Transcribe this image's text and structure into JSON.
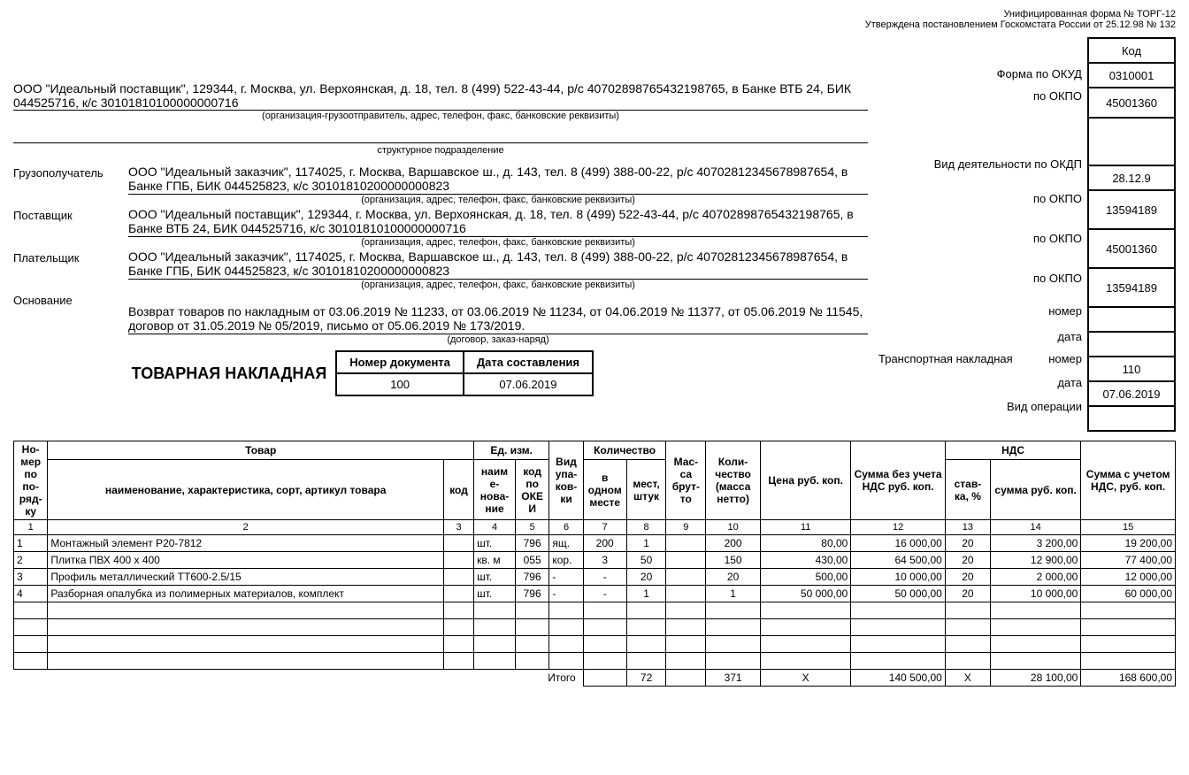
{
  "header": {
    "line1": "Унифицированная форма № ТОРГ-12",
    "line2": "Утверждена постановлением Госкомстата России от 25.12.98 № 132"
  },
  "codes": {
    "header": "Код",
    "okud_label": "Форма по ОКУД",
    "okud": "0310001",
    "okpo_label": "по ОКПО",
    "okpo_sender": "45001360",
    "okdp_label": "Вид деятельности по ОКДП",
    "okdp_date": "28.12.9",
    "okpo_consignee": "13594189",
    "okpo_supplier": "45001360",
    "okpo_payer": "13594189",
    "number_label": "номер",
    "date_label": "дата",
    "transport_number": "110",
    "transport_date": "07.06.2019",
    "transport_label": "Транспортная накладная",
    "operation_label": "Вид операции"
  },
  "sender": {
    "text": "ООО \"Идеальный поставщик\", 129344, г. Москва, ул. Верхоянская, д. 18, тел. 8 (499) 522-43-44, р/с 40702898765432198765, в Банке ВТБ 24, БИК 044525716, к/с 30101810100000000716",
    "caption": "(организация-грузоотправитель, адрес, телефон, факс, банковские реквизиты)"
  },
  "subdivision_caption": "структурное подразделение",
  "parties": {
    "consignee_label": "Грузополучатель",
    "consignee": "ООО \"Идеальный заказчик\", 1174025, г. Москва, Варшавское ш., д. 143, тел. 8 (499) 388-00-22, р/с 40702812345678987654, в Банке ГПБ, БИК 044525823, к/с 30101810200000000823",
    "supplier_label": "Поставщик",
    "supplier": "ООО \"Идеальный поставщик\", 129344, г. Москва, ул. Верхоянская, д. 18, тел. 8 (499) 522-43-44, р/с 40702898765432198765, в Банке ВТБ 24, БИК 044525716, к/с 30101810100000000716",
    "payer_label": "Плательщик",
    "payer": "ООО \"Идеальный заказчик\", 1174025, г. Москва, Варшавское ш., д. 143, тел. 8 (499) 388-00-22, р/с 40702812345678987654, в Банке ГПБ, БИК 044525823, к/с 30101810200000000823",
    "party_caption": "(организация, адрес, телефон, факс, банковские реквизиты)",
    "basis_label": "Основание",
    "basis": "Возврат товаров по накладным от 03.06.2019 № 11233, от 03.06.2019 № 11234, от 04.06.2019 № 11377, от 05.06.2019 № 11545, договор от 31.05.2019 № 05/2019, письмо от 05.06.2019 № 173/2019.",
    "basis_caption": "(договор, заказ-наряд)"
  },
  "doc": {
    "title": "ТОВАРНАЯ НАКЛАДНАЯ",
    "number_header": "Номер документа",
    "date_header": "Дата составления",
    "number": "100",
    "date": "07.06.2019"
  },
  "table": {
    "headers": {
      "num": "Но-мер по по-ряд-ку",
      "goods": "Товар",
      "goods_name": "наименование, характеристика, сорт, артикул товара",
      "goods_code": "код",
      "unit": "Ед. изм.",
      "unit_name": "наим е-нова-ние",
      "unit_code": "код по ОКЕ И",
      "pack": "Вид упа-ков-ки",
      "qty": "Количество",
      "qty_place": "в одном месте",
      "qty_places": "мест, штук",
      "mass": "Мас-са брут-то",
      "net": "Коли-чество (масса нетто)",
      "price": "Цена руб. коп.",
      "sum_no_vat": "Сумма без учета НДС руб. коп.",
      "vat": "НДС",
      "vat_rate": "став-ка, %",
      "vat_sum": "сумма руб. коп.",
      "sum_vat": "Сумма с учетом НДС, руб. коп."
    },
    "colnums": [
      "1",
      "2",
      "3",
      "4",
      "5",
      "6",
      "7",
      "8",
      "9",
      "10",
      "11",
      "12",
      "13",
      "14",
      "15"
    ],
    "rows": [
      {
        "n": "1",
        "name": "Монтажный элемент Р20-7812",
        "code": "",
        "un": "шт.",
        "unc": "796",
        "pack": "ящ.",
        "qp": "200",
        "qm": "1",
        "mass": "",
        "net": "200",
        "price": "80,00",
        "sum": "16 000,00",
        "vr": "20",
        "vs": "3 200,00",
        "total": "19 200,00"
      },
      {
        "n": "2",
        "name": "Плитка ПВХ 400 х 400",
        "code": "",
        "un": "кв. м",
        "unc": "055",
        "pack": "кор.",
        "qp": "3",
        "qm": "50",
        "mass": "",
        "net": "150",
        "price": "430,00",
        "sum": "64 500,00",
        "vr": "20",
        "vs": "12 900,00",
        "total": "77 400,00"
      },
      {
        "n": "3",
        "name": "Профиль металлический ТТ600-2.5/15",
        "code": "",
        "un": "шт.",
        "unc": "796",
        "pack": "-",
        "qp": "-",
        "qm": "20",
        "mass": "",
        "net": "20",
        "price": "500,00",
        "sum": "10 000,00",
        "vr": "20",
        "vs": "2 000,00",
        "total": "12 000,00"
      },
      {
        "n": "4",
        "name": "Разборная опалубка из полимерных материалов, комплект",
        "code": "",
        "un": "шт.",
        "unc": "796",
        "pack": "-",
        "qp": "-",
        "qm": "1",
        "mass": "",
        "net": "1",
        "price": "50 000,00",
        "sum": "50 000,00",
        "vr": "20",
        "vs": "10 000,00",
        "total": "60 000,00"
      }
    ],
    "totals": {
      "label": "Итого",
      "qm": "72",
      "net": "371",
      "price": "Х",
      "sum": "140 500,00",
      "vr": "Х",
      "vs": "28 100,00",
      "total": "168 600,00"
    }
  }
}
